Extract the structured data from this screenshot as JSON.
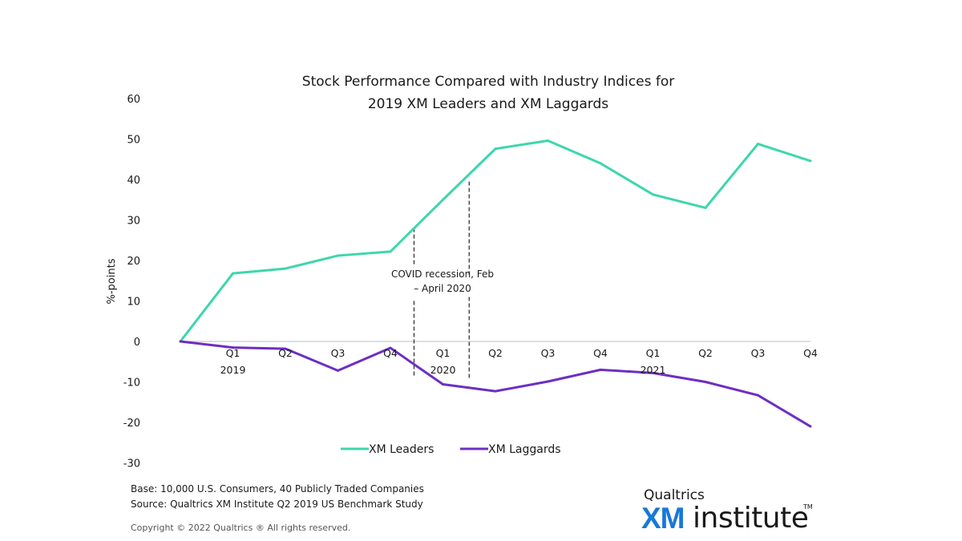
{
  "chart_data": {
    "type": "line",
    "title": [
      "Stock Performance Compared with Industry Indices for",
      "2019 XM Leaders and XM Laggards"
    ],
    "ylabel": "%-points",
    "xlabel": "",
    "ylim": [
      -30,
      60
    ],
    "yticks": [
      -30,
      -20,
      -10,
      0,
      10,
      20,
      30,
      40,
      50,
      60
    ],
    "ytick_labels": [
      "-30",
      "-20",
      "-10",
      "0",
      "10",
      "20",
      "30",
      "40",
      "50",
      "60"
    ],
    "categories": [
      "",
      "Q1",
      "Q2",
      "Q3",
      "Q4",
      "Q1",
      "Q2",
      "Q3",
      "Q4",
      "Q1",
      "Q2",
      "Q3",
      "Q4"
    ],
    "year_labels": [
      {
        "index": 1,
        "label": "2019"
      },
      {
        "index": 5,
        "label": "2020"
      },
      {
        "index": 9,
        "label": "2021"
      }
    ],
    "series": [
      {
        "name": "XM Leaders",
        "color": "#3ed6ad",
        "values": [
          0,
          16.8,
          18,
          21.2,
          22.2,
          35,
          47.6,
          49.6,
          44,
          36.3,
          33,
          48.8,
          44.6
        ]
      },
      {
        "name": "XM Laggards",
        "color": "#6c2fc2",
        "values": [
          0,
          -1.5,
          -1.8,
          -7.2,
          -1.6,
          -10.6,
          -12.3,
          -9.9,
          -7,
          -7.8,
          -10,
          -13.3,
          -21
        ]
      }
    ],
    "annotation": {
      "text": [
        "COVID recession, Feb",
        "– April 2020"
      ],
      "x_start": 4.45,
      "x_end": 5.5
    },
    "legend": {
      "position": "bottom"
    },
    "grid": false
  },
  "footer": {
    "base": "Base: 10,000 U.S. Consumers, 40 Publicly Traded Companies",
    "source": "Source: Qualtrics XM Institute Q2 2019 US Benchmark Study",
    "copyright": "Copyright © 2022 Qualtrics ® All rights reserved."
  },
  "brand": {
    "top": "Qualtrics",
    "xm": "XM",
    "institute": "institute",
    "tm": "TM",
    "xm_color": "#1878d8"
  }
}
